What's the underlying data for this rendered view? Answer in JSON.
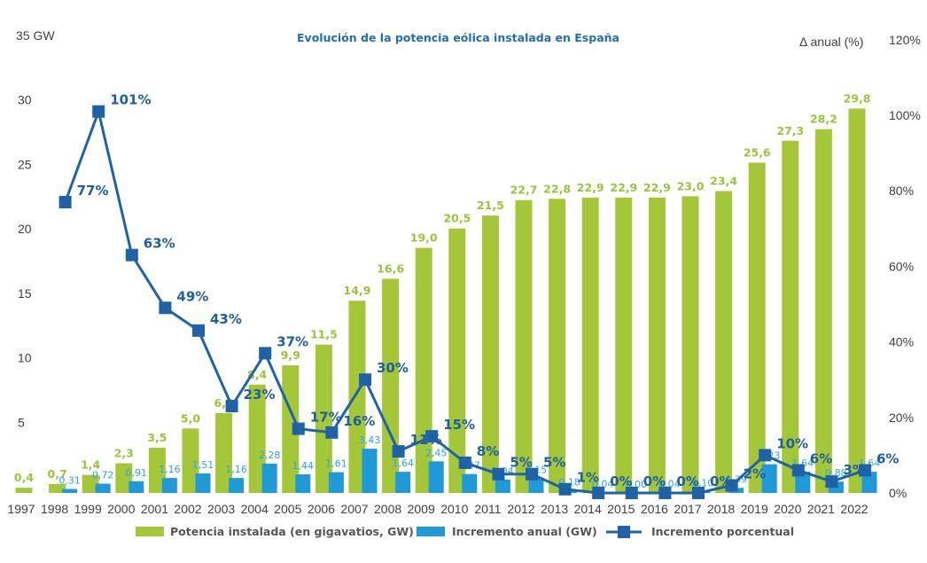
{
  "chart_data": {
    "type": "bar",
    "title": "Evolución de la potencia eólica instalada en España",
    "categories": [
      "1997",
      "1998",
      "1999",
      "2000",
      "2001",
      "2002",
      "2003",
      "2004",
      "2005",
      "2006",
      "2007",
      "2008",
      "2009",
      "2010",
      "2011",
      "2012",
      "2013",
      "2014",
      "2015",
      "2016",
      "2017",
      "2018",
      "2019",
      "2020",
      "2021",
      "2022"
    ],
    "y_left": {
      "label": "35 GW",
      "ticks": [
        "35 GW",
        "30",
        "25",
        "20",
        "15",
        "10",
        "5"
      ],
      "range": [
        0,
        35
      ]
    },
    "y_right": {
      "label": "Δ anual (%)",
      "ticks": [
        "0%",
        "20%",
        "40%",
        "60%",
        "80%",
        "100%",
        "120%"
      ],
      "range": [
        0,
        120
      ]
    },
    "series": [
      {
        "name": "Potencia instalada (en gigavatios, GW)",
        "type": "bar",
        "axis": "left",
        "color": "#a4c639",
        "values": [
          0.4,
          0.7,
          1.4,
          2.3,
          3.5,
          5.0,
          6.2,
          8.4,
          9.9,
          11.5,
          14.9,
          16.6,
          19.0,
          20.5,
          21.5,
          22.7,
          22.8,
          22.9,
          22.9,
          22.9,
          23.0,
          23.4,
          25.6,
          27.3,
          28.2,
          29.8
        ],
        "labels": [
          "0,4",
          "0,7",
          "1,4",
          "2,3",
          "3,5",
          "5,0",
          "6,2",
          "8,4",
          "9,9",
          "11,5",
          "14,9",
          "16,6",
          "19,0",
          "20,5",
          "21,5",
          "22,7",
          "22,8",
          "22,9",
          "22,9",
          "22,9",
          "23,0",
          "23,4",
          "25,6",
          "27,3",
          "28,2",
          "29,8"
        ]
      },
      {
        "name": "Incremento anual (GW)",
        "type": "bar",
        "axis": "left",
        "color": "#1f9ad6",
        "values": [
          null,
          0.31,
          0.72,
          0.91,
          1.16,
          1.51,
          1.16,
          2.28,
          1.44,
          1.61,
          3.43,
          1.64,
          2.45,
          1.47,
          1.04,
          1.15,
          0.18,
          0.04,
          0.0,
          0.04,
          0.1,
          0.39,
          2.23,
          1.64,
          0.88,
          1.64
        ],
        "labels": [
          "",
          "0,31",
          "0,72",
          "0,91",
          "1,16",
          "1,51",
          "1,16",
          "2,28",
          "1,44",
          "1,61",
          "3,43",
          "1,64",
          "2,45",
          "1,47",
          "1,04",
          "1,15",
          "0,18",
          "0,04",
          "0,00",
          "0,04",
          "0,10",
          "0,39",
          "2,23",
          "1,64",
          "0,88",
          "1,64"
        ]
      },
      {
        "name": "Incremento porcentual",
        "type": "line",
        "axis": "right",
        "color": "#1f62a8",
        "values": [
          null,
          77,
          101,
          63,
          49,
          43,
          23,
          37,
          17,
          16,
          30,
          11,
          15,
          8,
          5,
          5,
          1,
          0,
          0,
          0,
          0,
          2,
          10,
          6,
          3,
          6
        ],
        "labels": [
          "",
          "77%",
          "101%",
          "63%",
          "49%",
          "43%",
          "23%",
          "37%",
          "17%",
          "16%",
          "30%",
          "11%",
          "15%",
          "8%",
          "5%",
          "5%",
          "1%",
          "0%",
          "0%",
          "0%",
          "0%",
          "2%",
          "10%",
          "6%",
          "3%",
          "6%"
        ]
      }
    ],
    "legend": "bottom"
  }
}
